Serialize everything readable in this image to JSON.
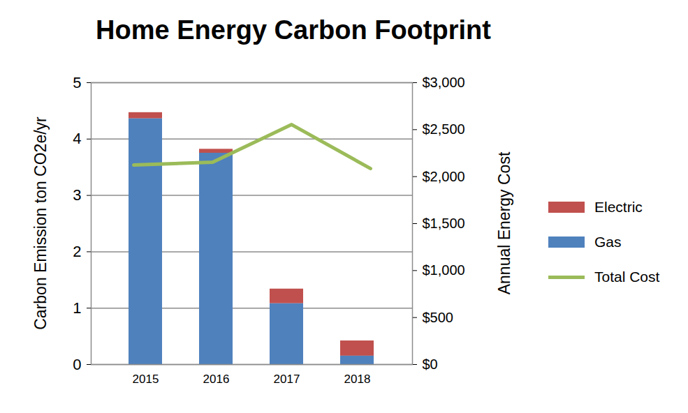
{
  "chart_data": {
    "type": "bar",
    "title": "Home Energy Carbon Footprint",
    "categories": [
      "2015",
      "2016",
      "2017",
      "2018"
    ],
    "stacked": true,
    "grid": true,
    "legend": "right",
    "y_label": "Carbon Emission ton  CO2e/yr",
    "y2_label": "Annual Energy Cost",
    "ylim": [
      0,
      5
    ],
    "yticks": [
      0,
      1,
      2,
      3,
      4,
      5
    ],
    "y2lim": [
      0,
      3000
    ],
    "y2ticks": [
      {
        "value": 0,
        "label": "$0"
      },
      {
        "value": 500,
        "label": "$500"
      },
      {
        "value": 1000,
        "label": "$1,000"
      },
      {
        "value": 1500,
        "label": "$1,500"
      },
      {
        "value": 2000,
        "label": "$2,000"
      },
      {
        "value": 2500,
        "label": "$2,500"
      },
      {
        "value": 3000,
        "label": "$3,000"
      }
    ],
    "series": [
      {
        "name": "Electric",
        "type": "bar",
        "color": "#c0504d",
        "values": [
          0.11,
          0.07,
          0.26,
          0.27
        ]
      },
      {
        "name": "Gas",
        "type": "bar",
        "color": "#4f81bd",
        "values": [
          4.36,
          3.75,
          1.08,
          0.15
        ]
      },
      {
        "name": "Total Cost",
        "type": "line",
        "axis": "y2",
        "color": "#9bbb59",
        "values": [
          2123,
          2153,
          2554,
          2086
        ]
      }
    ]
  }
}
